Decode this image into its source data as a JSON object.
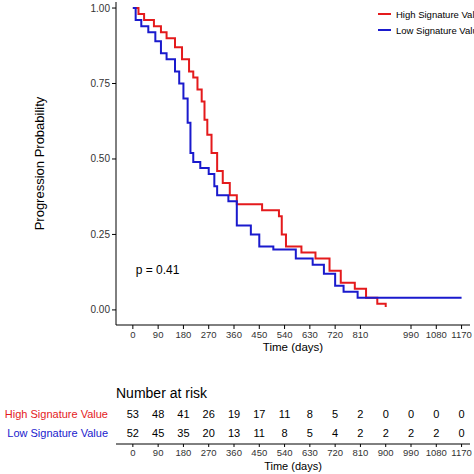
{
  "chart_data": {
    "type": "step",
    "xlabel": "Time (days)",
    "ylabel": "Progression Probability",
    "xlim": [
      -60,
      1200
    ],
    "ylim": [
      -0.05,
      1.02
    ],
    "xticks": [
      0,
      90,
      180,
      270,
      360,
      450,
      540,
      630,
      720,
      810,
      990,
      1080,
      1170
    ],
    "yticks": [
      {
        "value": 0,
        "label": "0.00"
      },
      {
        "value": 0.25,
        "label": "0.25"
      },
      {
        "value": 0.5,
        "label": "0.50"
      },
      {
        "value": 0.75,
        "label": "0.75"
      },
      {
        "value": 1,
        "label": "1.00"
      }
    ],
    "legend": "top-right",
    "annotations": [
      "p = 0.41"
    ],
    "series": [
      {
        "name": "High Signature Value",
        "color": "#e41a1c",
        "x": [
          0,
          20,
          40,
          75,
          100,
          120,
          150,
          175,
          200,
          215,
          230,
          245,
          255,
          265,
          280,
          300,
          320,
          345,
          370,
          420,
          460,
          520,
          530,
          545,
          600,
          650,
          700,
          740,
          790,
          830,
          870,
          900
        ],
        "values": [
          1.0,
          0.98,
          0.96,
          0.94,
          0.92,
          0.9,
          0.87,
          0.83,
          0.79,
          0.77,
          0.73,
          0.69,
          0.63,
          0.58,
          0.52,
          0.46,
          0.42,
          0.38,
          0.35,
          0.35,
          0.33,
          0.31,
          0.25,
          0.21,
          0.19,
          0.17,
          0.13,
          0.09,
          0.07,
          0.04,
          0.02,
          0.01
        ]
      },
      {
        "name": "Low Signature Value",
        "color": "#1a1acd",
        "x": [
          0,
          10,
          30,
          55,
          80,
          100,
          120,
          150,
          165,
          180,
          195,
          205,
          215,
          240,
          270,
          290,
          300,
          340,
          370,
          420,
          450,
          500,
          550,
          580,
          640,
          680,
          720,
          750,
          800,
          1170
        ],
        "values": [
          1.0,
          0.96,
          0.94,
          0.92,
          0.89,
          0.85,
          0.83,
          0.79,
          0.75,
          0.7,
          0.62,
          0.52,
          0.49,
          0.47,
          0.45,
          0.41,
          0.38,
          0.36,
          0.28,
          0.25,
          0.21,
          0.2,
          0.2,
          0.17,
          0.15,
          0.12,
          0.08,
          0.06,
          0.04,
          0.04
        ]
      }
    ]
  },
  "risk_table": {
    "title": "Number at risk",
    "xlabel": "Time (days)",
    "times": [
      0,
      90,
      180,
      270,
      360,
      450,
      540,
      630,
      720,
      810,
      900,
      990,
      1080,
      1170
    ],
    "rows": [
      {
        "name": "High Signature Value",
        "color": "#e41a1c",
        "values": [
          53,
          48,
          41,
          26,
          19,
          17,
          11,
          8,
          5,
          2,
          0,
          0,
          0,
          0
        ]
      },
      {
        "name": "Low Signature Value",
        "color": "#1a1acd",
        "values": [
          52,
          45,
          35,
          20,
          13,
          11,
          8,
          5,
          4,
          2,
          2,
          2,
          2,
          0
        ]
      }
    ]
  }
}
